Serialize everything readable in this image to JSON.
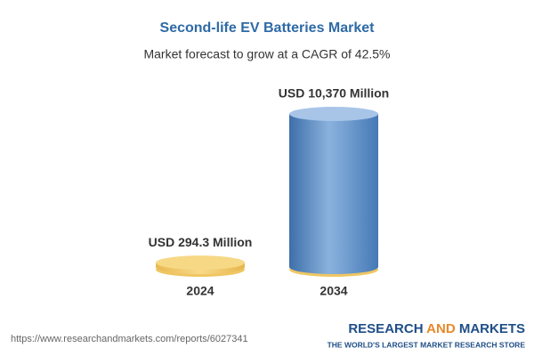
{
  "chart_data": {
    "type": "bar",
    "title": "Second-life EV Batteries Market",
    "subtitle": "Market forecast to grow at a CAGR of 42.5%",
    "categories": [
      "2024",
      "2034"
    ],
    "values": [
      294.3,
      10370
    ],
    "value_labels": [
      "USD 294.3 Million",
      "USD 10,370 Million"
    ],
    "colors": [
      "#f2c868",
      "#5d8fc6"
    ]
  },
  "footer": {
    "source": "https://www.researchandmarkets.com/reports/6027341",
    "brand": [
      "RESEARCH",
      "AND",
      "MARKETS"
    ],
    "tagline": "THE WORLD'S LARGEST MARKET RESEARCH STORE"
  }
}
